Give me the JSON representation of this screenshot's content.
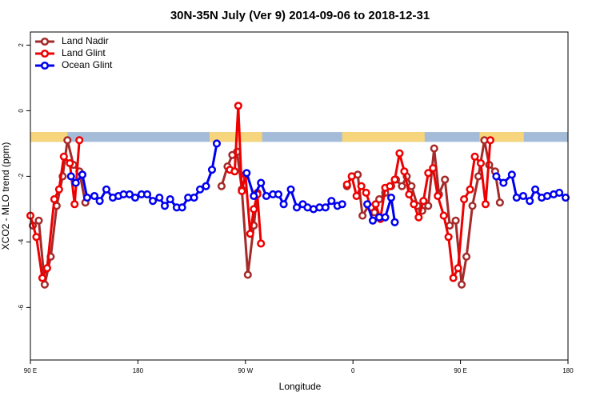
{
  "chart_data": {
    "type": "line",
    "title": "30N-35N July (Ver 9)   2014-09-06 to 2018-12-31",
    "x_label": "Longitude",
    "y_label": "XCO2 - MLO trend (ppm)",
    "xlim": [
      90,
      540
    ],
    "ylim": [
      -7.6,
      2.4
    ],
    "xticks": [
      {
        "value": 90,
        "label": "90 E"
      },
      180,
      {
        "value": 270,
        "label": "90 W"
      },
      {
        "value": 360,
        "label": "0"
      },
      {
        "value": 450,
        "label": "90 E"
      },
      {
        "value": 540,
        "label": "180"
      }
    ],
    "yticks": [
      2,
      0,
      -2,
      -4,
      -6
    ],
    "legend": "top-left",
    "surface_band": {
      "ylim": [
        -0.95,
        -0.65
      ],
      "land_color": "#f7d57c",
      "ocean_color": "#a5bcd9",
      "land": [
        [
          90,
          121
        ],
        [
          240,
          284
        ],
        [
          351,
          420
        ],
        [
          466,
          503
        ]
      ]
    },
    "series": [
      {
        "name": "Land Nadir",
        "color": "#a52a2a",
        "x": [
          92,
          97,
          102,
          107,
          112,
          117,
          121,
          126,
          131,
          136,
          null,
          250,
          255,
          259,
          263,
          267,
          272,
          277,
          280,
          null,
          355,
          359,
          364,
          368,
          373,
          378,
          382,
          387,
          392,
          396,
          401,
          405,
          409,
          414,
          418,
          423,
          428,
          432,
          437,
          441,
          446,
          451,
          455,
          460,
          465,
          470,
          474,
          479,
          483
        ],
        "values": [
          -3.5,
          -3.35,
          -5.3,
          -4.45,
          -2.9,
          -2.0,
          -0.9,
          -1.65,
          -1.85,
          -2.8,
          null,
          -2.3,
          -1.7,
          -1.35,
          -1.25,
          -2.4,
          -5.0,
          -3.5,
          -2.5,
          null,
          -2.3,
          -2.0,
          -1.95,
          -3.2,
          -2.9,
          -3.1,
          -2.7,
          -2.5,
          -2.3,
          -2.1,
          -2.3,
          -2.0,
          -2.3,
          -2.9,
          -3.05,
          -2.9,
          -1.15,
          -2.55,
          -2.1,
          -3.5,
          -3.35,
          -5.3,
          -4.45,
          -2.9,
          -2.0,
          -0.9,
          -1.65,
          -1.85,
          -2.8
        ]
      },
      {
        "name": "Land Glint",
        "color": "#ee0000",
        "x": [
          90,
          95,
          100,
          104,
          110,
          114,
          118,
          123,
          127,
          131,
          null,
          257,
          261,
          264,
          267,
          270,
          274,
          277,
          280,
          283,
          null,
          355,
          359,
          363,
          367,
          371,
          375,
          379,
          383,
          387,
          391,
          395,
          399,
          403,
          407,
          411,
          415,
          419,
          423,
          427,
          431,
          436,
          440,
          444,
          448,
          453,
          458,
          462,
          467,
          471,
          475
        ],
        "values": [
          -3.2,
          -3.85,
          -5.1,
          -4.8,
          -2.7,
          -2.4,
          -1.4,
          -1.6,
          -2.85,
          -0.9,
          null,
          -1.8,
          -1.85,
          0.15,
          -2.45,
          -1.95,
          -3.75,
          -3.0,
          -2.55,
          -4.05,
          null,
          -2.25,
          -2.0,
          -2.6,
          -2.3,
          -2.5,
          -2.95,
          -2.85,
          -3.3,
          -2.35,
          -2.3,
          -2.1,
          -1.3,
          -1.85,
          -2.55,
          -2.85,
          -3.25,
          -2.75,
          -1.9,
          -1.75,
          -2.6,
          -3.2,
          -3.85,
          -5.1,
          -4.8,
          -2.7,
          -2.4,
          -1.4,
          -1.6,
          -2.85,
          -0.9
        ]
      },
      {
        "name": "Ocean Glint",
        "color": "#0000ee",
        "x": [
          124,
          128,
          133.5,
          137.5,
          143.6,
          148,
          153.6,
          159,
          163.7,
          168,
          173,
          177.7,
          183,
          187.8,
          192.5,
          198,
          202.5,
          207,
          212.5,
          217,
          222,
          227,
          232,
          237,
          242,
          246,
          null,
          271,
          277,
          283,
          287.5,
          293,
          297.6,
          302,
          308,
          313,
          318,
          322,
          327,
          332,
          337,
          342,
          347,
          351,
          null,
          372,
          376.6,
          382,
          387,
          392,
          395,
          null,
          480,
          486,
          493,
          497,
          502.5,
          508,
          512.6,
          518,
          522.6,
          528,
          532.7,
          538
        ],
        "values": [
          -2.0,
          -2.2,
          -1.95,
          -2.65,
          -2.6,
          -2.75,
          -2.4,
          -2.65,
          -2.6,
          -2.55,
          -2.55,
          -2.65,
          -2.55,
          -2.55,
          -2.75,
          -2.65,
          -2.9,
          -2.7,
          -2.95,
          -2.95,
          -2.65,
          -2.65,
          -2.4,
          -2.3,
          -1.8,
          -1.0,
          null,
          -1.9,
          -2.6,
          -2.2,
          -2.6,
          -2.55,
          -2.55,
          -2.85,
          -2.4,
          -2.95,
          -2.85,
          -2.95,
          -3.0,
          -2.95,
          -2.95,
          -2.75,
          -2.9,
          -2.85,
          null,
          -2.85,
          -3.35,
          -3.25,
          -3.25,
          -2.65,
          -3.4,
          null,
          -2.0,
          -2.2,
          -1.95,
          -2.65,
          -2.6,
          -2.75,
          -2.4,
          -2.65,
          -2.6,
          -2.55,
          -2.5,
          -2.65
        ]
      }
    ]
  }
}
